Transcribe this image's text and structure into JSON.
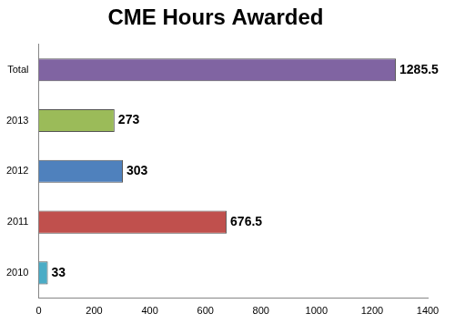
{
  "chart_data": {
    "type": "bar",
    "orientation": "horizontal",
    "title": "CME Hours Awarded",
    "categories": [
      "Total",
      "2013",
      "2012",
      "2011",
      "2010"
    ],
    "values": [
      1285.5,
      273,
      303,
      676.5,
      33
    ],
    "colors": [
      "#8064a2",
      "#9bbb59",
      "#4f81bd",
      "#c0504d",
      "#4bacc6"
    ],
    "xlim": [
      0,
      1400
    ],
    "xticks": [
      0,
      200,
      400,
      600,
      800,
      1000,
      1200,
      1400
    ],
    "grid": false,
    "data_labels": true
  }
}
